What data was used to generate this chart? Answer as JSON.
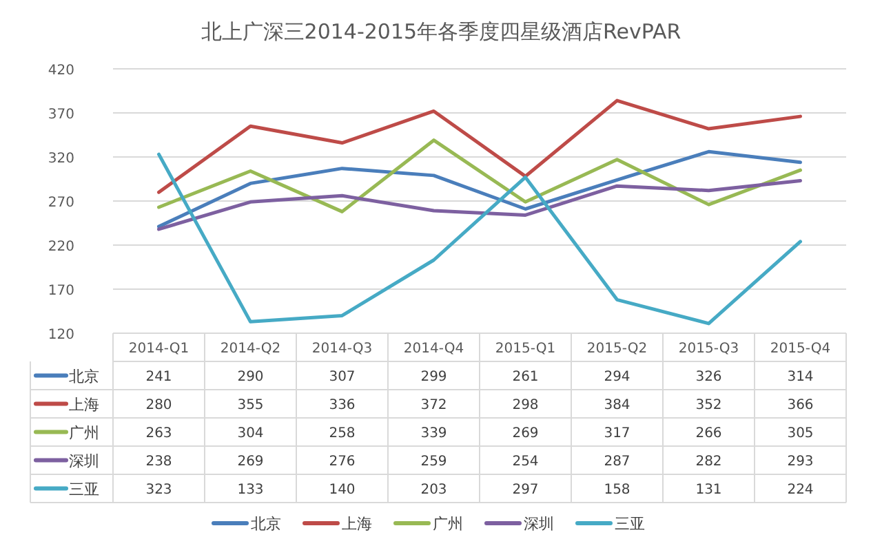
{
  "chart_data": {
    "type": "line",
    "title": "北上广深三2014-2015年各季度四星级酒店RevPAR",
    "categories": [
      "2014-Q1",
      "2014-Q2",
      "2014-Q3",
      "2014-Q4",
      "2015-Q1",
      "2015-Q2",
      "2015-Q3",
      "2015-Q4"
    ],
    "series": [
      {
        "name": "北京",
        "color": "#4a7ebb",
        "values": [
          241,
          290,
          307,
          299,
          261,
          294,
          326,
          314
        ]
      },
      {
        "name": "上海",
        "color": "#be4b48",
        "values": [
          280,
          355,
          336,
          372,
          298,
          384,
          352,
          366
        ]
      },
      {
        "name": "广州",
        "color": "#98b954",
        "values": [
          263,
          304,
          258,
          339,
          269,
          317,
          266,
          305
        ]
      },
      {
        "name": "深圳",
        "color": "#7d60a0",
        "values": [
          238,
          269,
          276,
          259,
          254,
          287,
          282,
          293
        ]
      },
      {
        "name": "三亚",
        "color": "#46aac5",
        "values": [
          323,
          133,
          140,
          203,
          297,
          158,
          131,
          224
        ]
      }
    ],
    "ylim": [
      120,
      420
    ],
    "yticks": [
      120,
      170,
      220,
      270,
      320,
      370,
      420
    ],
    "grid": "y",
    "legend": "bottom",
    "data_labels": true,
    "marker": "none",
    "line_style": "solid"
  }
}
